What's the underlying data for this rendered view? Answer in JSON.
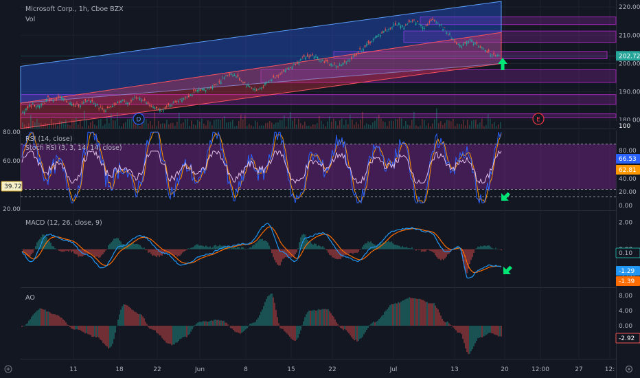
{
  "colors": {
    "background": "#131722",
    "grid": "#1e222d",
    "text": "#b2b5be",
    "channel_blue": "#2962ff",
    "channel_red": "#f23645",
    "zone_purple": "#9c27b0",
    "rsi_line": "#2962ff",
    "stoch_k": "#2962ff",
    "stoch_d": "#ff9800",
    "macd_line": "#2196f3",
    "signal_line": "#ff6d00",
    "up": "#26a69a",
    "down": "#ef5350",
    "arrow": "#00e676"
  },
  "chart_data": [
    {
      "type": "line",
      "name": "price",
      "title": "Microsoft Corp., 1h, Cboe BZX",
      "subtitle": "Vol",
      "y_ticks": [
        "220.00",
        "210.00",
        "200.00",
        "190.00",
        "180.00"
      ],
      "ylim": [
        177,
        222
      ],
      "last_price": "202.72",
      "volume_tag": "100",
      "y": [
        183,
        184.5,
        185.5,
        184.8,
        186,
        187.5,
        187,
        188,
        187.5,
        186.2,
        185,
        185.5,
        186,
        187,
        186.5,
        184.5,
        183.5,
        184,
        185,
        186.5,
        187,
        186,
        187.5,
        188,
        186.5,
        185,
        184,
        183.5,
        184,
        185.5,
        186.5,
        187.5,
        188,
        189,
        190,
        191,
        190.5,
        191.8,
        192.5,
        194,
        195.5,
        196.5,
        195.5,
        194,
        192.5,
        191.5,
        190.5,
        191.5,
        193,
        194.5,
        195.5,
        197,
        198,
        199,
        200.5,
        201.5,
        202.5,
        203,
        202,
        201,
        200.2,
        199.5,
        199,
        199.8,
        201,
        202.5,
        204,
        205.5,
        207,
        208.5,
        210,
        211.5,
        212,
        213.5,
        214,
        213,
        214.5,
        215,
        214,
        213,
        214.5,
        215.5,
        214,
        212,
        210,
        208,
        206,
        207.5,
        208.5,
        207,
        206,
        204.5,
        203.5,
        202.5,
        202.7
      ],
      "events": [
        "D",
        "E"
      ],
      "price_channel_blue": {
        "start": [
          186,
          199
        ],
        "end": [
          200,
          222
        ]
      },
      "price_channel_red": {
        "start": [
          177,
          186
        ],
        "end": [
          200,
          211
        ]
      }
    },
    {
      "type": "line",
      "name": "rsi",
      "title": "RSI (14, close)",
      "subtitle": "Stoch RSI (3, 3, 14, 14, close)",
      "left_ticks": [
        "80.00",
        "60.00",
        "20.00"
      ],
      "right_ticks": [
        "80.00",
        "40.00",
        "20.00",
        "0.00"
      ],
      "ylim": [
        -8,
        98
      ],
      "levels": [
        80,
        20,
        10
      ],
      "rsi_value": "39.72",
      "stoch_k_value": "66.53",
      "stoch_d_value": "62.81"
    },
    {
      "type": "bar",
      "name": "macd",
      "title": "MACD (12, 26, close, 9)",
      "y_ticks": [
        "2.00",
        "0.00",
        "-2.00"
      ],
      "ylim": [
        -2.85,
        2.6
      ],
      "hist_value": "0.10",
      "macd_value": "-1.29",
      "signal_value": "-1.39"
    },
    {
      "type": "bar",
      "name": "ao",
      "title": "AO",
      "y_ticks": [
        "8.00",
        "4.00",
        "0.00",
        "-4.00"
      ],
      "ylim": [
        -8.8,
        9.5
      ],
      "ao_value": "-2.92"
    }
  ],
  "x_axis": {
    "ticks": [
      "11",
      "18",
      "22",
      "Jun",
      "8",
      "15",
      "22",
      "Jul",
      "13",
      "20",
      "12:00",
      "27",
      "12:"
    ]
  },
  "bottom_left_icon": "logo-glyph",
  "bottom_right_icon": "settings-gear"
}
